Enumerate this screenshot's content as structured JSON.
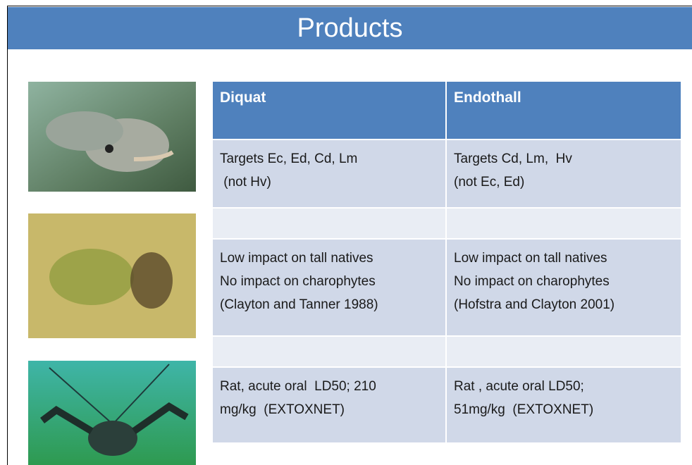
{
  "header": {
    "title": "Products"
  },
  "table": {
    "columns": [
      "Diquat",
      "Endothall"
    ],
    "rows": [
      [
        [
          "Targets Ec, Ed, Cd, Lm",
          " (not Hv)"
        ],
        [
          "Targets Cd, Lm,  Hv",
          "(not Ec, Ed)"
        ]
      ],
      [
        [
          "Low impact on tall natives",
          "No impact on charophytes",
          "(Clayton and Tanner 1988)"
        ],
        [
          "Low impact on tall natives",
          "No impact on charophytes",
          "(Hofstra and Clayton 2001)"
        ]
      ],
      [
        [
          "Rat, acute oral  LD50; 210",
          "mg/kg  (EXTOXNET)"
        ],
        [
          "Rat , acute oral LD50;",
          "51mg/kg  (EXTOXNET)"
        ]
      ]
    ]
  }
}
